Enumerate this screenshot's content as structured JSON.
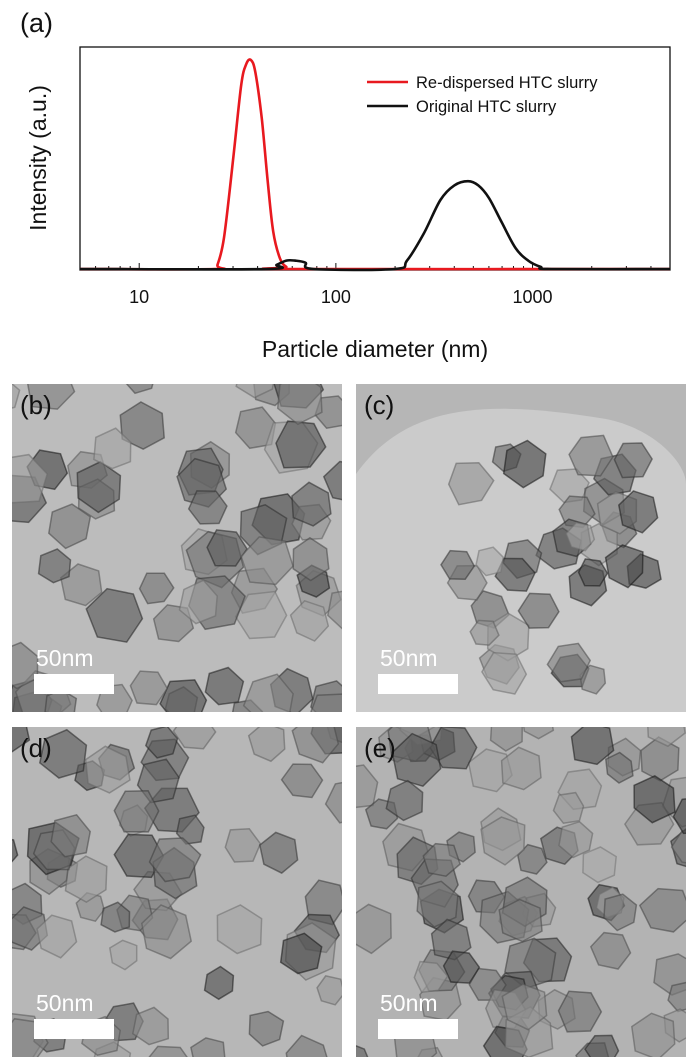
{
  "panels": {
    "a": "(a)",
    "b": "(b)",
    "c": "(c)",
    "d": "(d)",
    "e": "(e)"
  },
  "scale_bar": "50nm",
  "chart_data": {
    "type": "line",
    "xlabel": "Particle diameter (nm)",
    "ylabel": "Intensity (a.u.)",
    "x_scale": "log",
    "xlim": [
      5,
      5000
    ],
    "ylim": [
      0,
      100
    ],
    "x_ticks": [
      10,
      100,
      1000
    ],
    "x_tick_labels": [
      "10",
      "100",
      "1000"
    ],
    "legend_position": "top-right",
    "grid": false,
    "series": [
      {
        "name": "Re-dispersed HTC slurry",
        "color": "#e8191f",
        "x": [
          5,
          24,
          25,
          27,
          30,
          33,
          35,
          37,
          39,
          42,
          45,
          48,
          52,
          56,
          60,
          5000
        ],
        "y": [
          0,
          0,
          2,
          15,
          52,
          88,
          98,
          100,
          94,
          72,
          42,
          18,
          5,
          1,
          0,
          0
        ]
      },
      {
        "name": "Original HTC slurry",
        "color": "#111111",
        "x": [
          5,
          44,
          50,
          56,
          62,
          70,
          77,
          200,
          230,
          280,
          340,
          400,
          470,
          530,
          600,
          700,
          820,
          950,
          1100,
          1250,
          5000
        ],
        "y": [
          0,
          0,
          2,
          4,
          4,
          3,
          0,
          0,
          4,
          17,
          33,
          40,
          42,
          40,
          34,
          22,
          10,
          4,
          1,
          0,
          0
        ]
      }
    ]
  }
}
